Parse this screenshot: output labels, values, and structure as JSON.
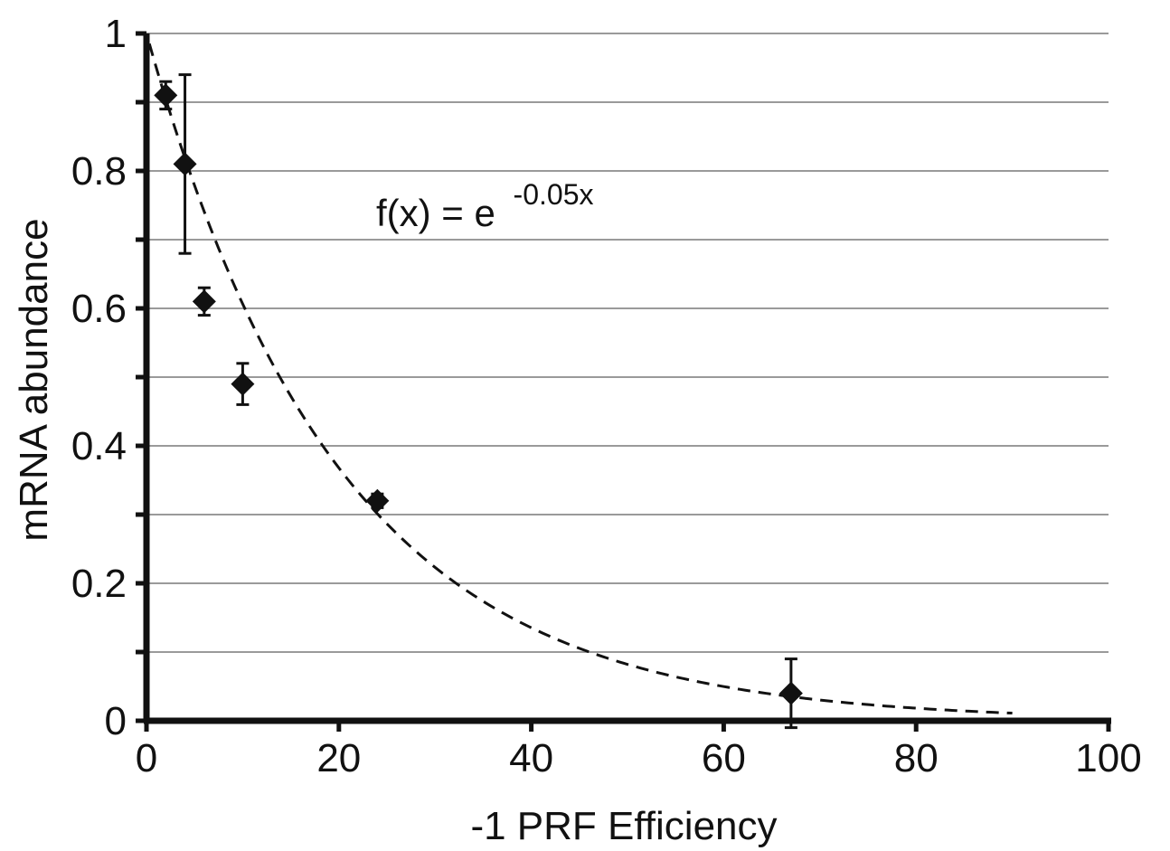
{
  "chart_data": {
    "type": "scatter",
    "title": "",
    "xlabel": "-1 PRF Efficiency",
    "ylabel": "mRNA  abundance",
    "xlim": [
      0,
      100
    ],
    "ylim": [
      0,
      1
    ],
    "x_ticks": [
      0,
      20,
      40,
      60,
      80,
      100
    ],
    "x_tick_labels": [
      "0",
      "20",
      "40",
      "60",
      "80",
      "100"
    ],
    "y_ticks": [
      0,
      0.2,
      0.4,
      0.6,
      0.8,
      1
    ],
    "y_tick_labels": [
      "0",
      "0.2",
      "0.4",
      "0.6",
      "0.8",
      "1"
    ],
    "y_minor_gridlines": [
      0.1,
      0.3,
      0.5,
      0.7,
      0.9
    ],
    "grid": "horizontal",
    "marker": "diamond",
    "marker_color": "#111111",
    "gridline_color": "#9a9a9a",
    "points": [
      {
        "x": 2,
        "y": 0.91,
        "err_low": 0.89,
        "err_high": 0.93
      },
      {
        "x": 4,
        "y": 0.81,
        "err_low": 0.68,
        "err_high": 0.94
      },
      {
        "x": 6,
        "y": 0.61,
        "err_low": 0.59,
        "err_high": 0.63
      },
      {
        "x": 10,
        "y": 0.49,
        "err_low": 0.46,
        "err_high": 0.52
      },
      {
        "x": 24,
        "y": 0.32,
        "err_low": 0.31,
        "err_high": 0.33
      },
      {
        "x": 67,
        "y": 0.04,
        "err_low": -0.01,
        "err_high": 0.09
      }
    ],
    "fit": {
      "style": "dashed",
      "equation_base": "f(x) = e",
      "equation_exponent": "-0.05x",
      "rate": -0.05,
      "x_range": [
        0.3,
        90
      ]
    }
  }
}
